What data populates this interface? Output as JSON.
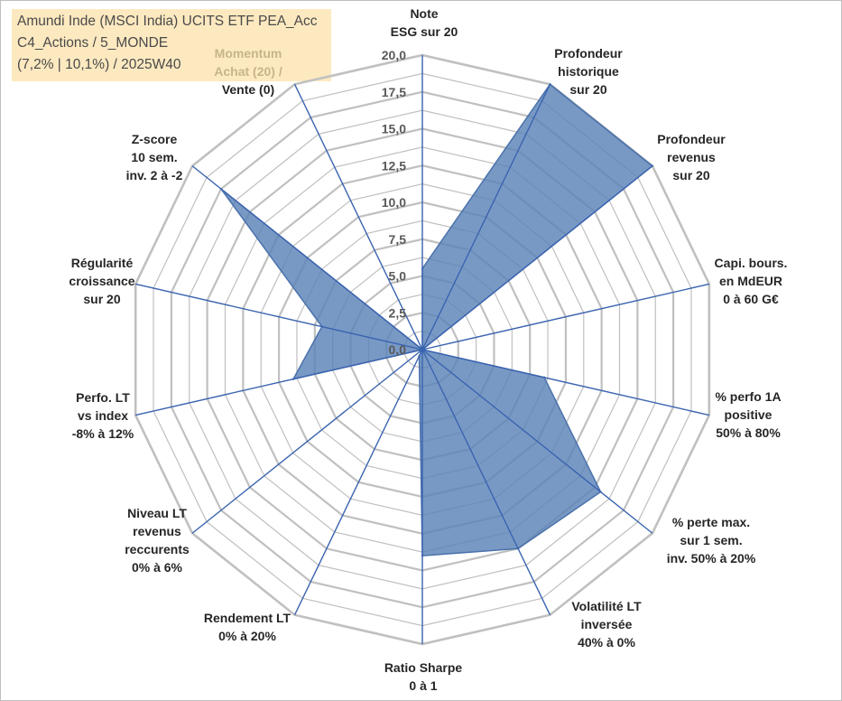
{
  "title": {
    "line1": "Amundi Inde (MSCI India) UCITS ETF PEA_Acc",
    "line2": "C4_Actions / 5_MONDE",
    "line3": "(7,2% | 10,1%) / 2025W40"
  },
  "colors": {
    "fill": "#5b83b8",
    "stroke": "#4a72ab",
    "spoke": "#3a64b0",
    "grid": "#c0c0c0",
    "title_bg": "#fde9c0"
  },
  "chart_data": {
    "type": "radar",
    "rmin": 0,
    "rmax": 20,
    "ticks": [
      "0,0",
      "2,5",
      "5,0",
      "7,5",
      "10,0",
      "12,5",
      "15,0",
      "17,5",
      "20,0"
    ],
    "axes": [
      {
        "lines": [
          "Note",
          "ESG sur 20"
        ]
      },
      {
        "lines": [
          "Profondeur",
          "historique",
          "sur 20"
        ]
      },
      {
        "lines": [
          "Profondeur",
          "revenus",
          "sur 20"
        ]
      },
      {
        "lines": [
          "Capi. bours.",
          "en MdEUR",
          "0 à 60 G€"
        ]
      },
      {
        "lines": [
          "% perfo 1A",
          "positive",
          "50% à 80%"
        ]
      },
      {
        "lines": [
          "% perte max.",
          "sur 1 sem.",
          "inv. 50% à 20%"
        ]
      },
      {
        "lines": [
          "Volatilité LT",
          "inversée",
          "40% à 0%"
        ]
      },
      {
        "lines": [
          "Ratio Sharpe",
          "0 à 1"
        ]
      },
      {
        "lines": [
          "Rendement LT",
          "0% à 20%"
        ]
      },
      {
        "lines": [
          "Niveau LT",
          "revenus",
          "reccurents",
          "0% à 6%"
        ]
      },
      {
        "lines": [
          "Perfo. LT",
          "vs index",
          "-8% à 12%"
        ]
      },
      {
        "lines": [
          "Régularité",
          "croissance",
          "sur 20"
        ]
      },
      {
        "lines": [
          "Z-score",
          "10 sem.",
          "inv. 2 à -2"
        ]
      },
      {
        "lines": [
          "Momentum",
          "Achat (20) /",
          "Vente (0)"
        ]
      }
    ],
    "series": [
      {
        "values": [
          5.5,
          20,
          20,
          0,
          8.5,
          15.5,
          15,
          14,
          0.5,
          0,
          9,
          7,
          17.5,
          0
        ]
      }
    ]
  }
}
